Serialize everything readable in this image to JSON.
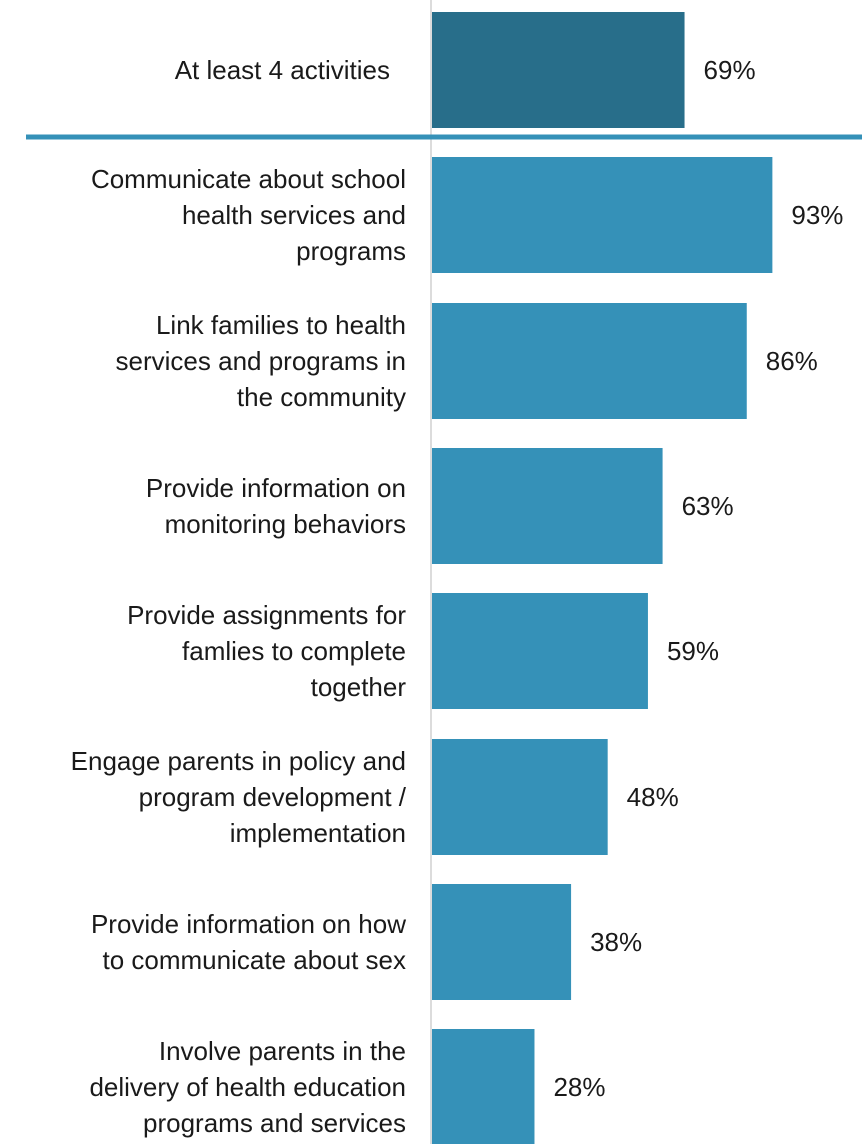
{
  "chart_data": {
    "type": "bar",
    "orientation": "horizontal",
    "categories": [
      "At least 4 activities",
      "Communicate about school health services and programs",
      "Link families to health services and programs in the community",
      "Provide information on monitoring behaviors",
      "Provide assignments for famlies to complete together",
      "Engage parents in policy and program development / implementation",
      "Provide information on how to communicate about sex",
      "Involve parents in the delivery of health education programs and services"
    ],
    "category_lines": [
      [
        "At least 4 activities"
      ],
      [
        "Communicate about school",
        "health services and",
        "programs"
      ],
      [
        "Link families to health",
        "services and programs in",
        "the community"
      ],
      [
        "Provide information on",
        "monitoring behaviors"
      ],
      [
        "Provide assignments for",
        "famlies to complete",
        "together"
      ],
      [
        "Engage parents in policy and",
        "program development /",
        "implementation"
      ],
      [
        "Provide information on how",
        "to communicate about sex"
      ],
      [
        "Involve parents in the",
        "delivery of health education",
        "programs and services"
      ]
    ],
    "values": [
      69,
      93,
      86,
      63,
      59,
      48,
      38,
      28
    ],
    "value_labels": [
      "69%",
      "93%",
      "86%",
      "63%",
      "59%",
      "48%",
      "38%",
      "28%"
    ],
    "colors": {
      "summary_bar": "#286e8a",
      "bar": "#3591b8",
      "separator": "#3591b8",
      "axis": "#d0d0d0",
      "text": "#1a1a1a"
    },
    "xlim": [
      0,
      100
    ],
    "grid": false,
    "legend": "none",
    "title": "",
    "xlabel": "",
    "ylabel": ""
  }
}
